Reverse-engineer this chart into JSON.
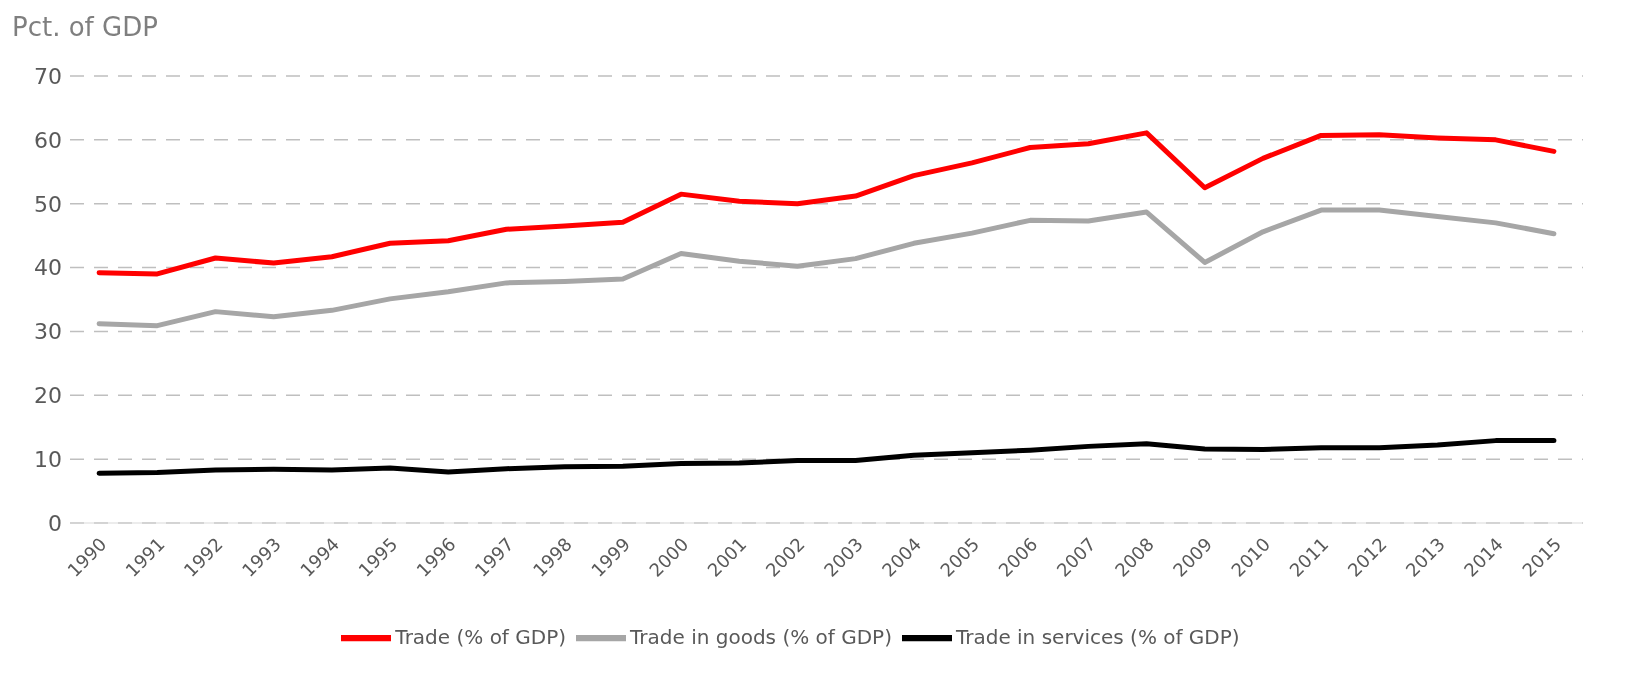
{
  "chart_data": {
    "type": "line",
    "ylabel": "Pct. of GDP",
    "categories": [
      "1990",
      "1991",
      "1992",
      "1993",
      "1994",
      "1995",
      "1996",
      "1997",
      "1998",
      "1999",
      "2000",
      "2001",
      "2002",
      "2003",
      "2004",
      "2005",
      "2006",
      "2007",
      "2008",
      "2009",
      "2010",
      "2011",
      "2012",
      "2013",
      "2014",
      "2015"
    ],
    "series": [
      {
        "name": "Trade (% of GDP)",
        "color": "#ff0000",
        "values": [
          39.2,
          39.0,
          41.5,
          40.7,
          41.7,
          43.8,
          44.2,
          46.0,
          46.5,
          47.1,
          51.5,
          50.4,
          50.0,
          51.2,
          54.4,
          56.4,
          58.8,
          59.4,
          61.1,
          52.5,
          57.1,
          60.7,
          60.8,
          60.3,
          60.0,
          58.2
        ]
      },
      {
        "name": "Trade in services (% of GDP)",
        "color": "#000000",
        "values": [
          7.8,
          7.9,
          8.3,
          8.4,
          8.3,
          8.6,
          8.0,
          8.5,
          8.8,
          8.9,
          9.3,
          9.4,
          9.8,
          9.8,
          10.6,
          11.0,
          11.4,
          12.0,
          12.4,
          11.6,
          11.5,
          11.8,
          11.8,
          12.2,
          12.9,
          12.9
        ]
      },
      {
        "name": "Trade in goods (% of GDP)",
        "color": "#a6a6a6",
        "values": [
          31.2,
          30.9,
          33.1,
          32.3,
          33.3,
          35.1,
          36.2,
          37.6,
          37.8,
          38.2,
          42.2,
          41.0,
          40.2,
          41.4,
          43.8,
          45.4,
          47.4,
          47.3,
          48.7,
          40.8,
          45.6,
          49.0,
          49.0,
          48.0,
          47.0,
          45.3
        ]
      }
    ],
    "ylim": [
      0,
      70
    ],
    "yticks": [
      0,
      10,
      20,
      30,
      40,
      50,
      60,
      70
    ],
    "grid": "y",
    "legend": "bottom",
    "line_style": "solid",
    "marker": "none"
  }
}
